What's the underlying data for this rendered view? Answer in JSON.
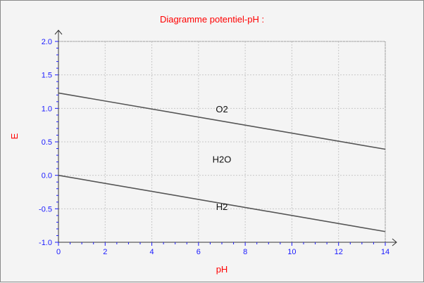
{
  "chart_data": {
    "type": "line",
    "title": "Diagramme potentiel-pH :",
    "xlabel": "pH",
    "ylabel": "E",
    "xlim": [
      0,
      14
    ],
    "ylim": [
      -1.0,
      2.0
    ],
    "xticks": [
      0,
      2,
      4,
      6,
      8,
      10,
      12,
      14
    ],
    "yticks": [
      "-1.0",
      "-0.5",
      "0.0",
      "0.5",
      "1.0",
      "1.5",
      "2.0"
    ],
    "grid": true,
    "series": [
      {
        "x": [
          0,
          14
        ],
        "y": [
          1.23,
          0.39
        ]
      },
      {
        "x": [
          0,
          14
        ],
        "y": [
          0.0,
          -0.84
        ]
      }
    ],
    "annotations": [
      {
        "text": "O2",
        "x": 7.0,
        "y": 0.94
      },
      {
        "text": "H2O",
        "x": 7.0,
        "y": 0.19
      },
      {
        "text": "H2",
        "x": 7.0,
        "y": -0.52
      }
    ],
    "colors": {
      "title": "#ff0000",
      "axis_labels": "#ff0000",
      "ticks": "#1a1aff",
      "lines": "#555555",
      "grid": "#c8c8c8",
      "background": "#f4f4f4"
    }
  }
}
